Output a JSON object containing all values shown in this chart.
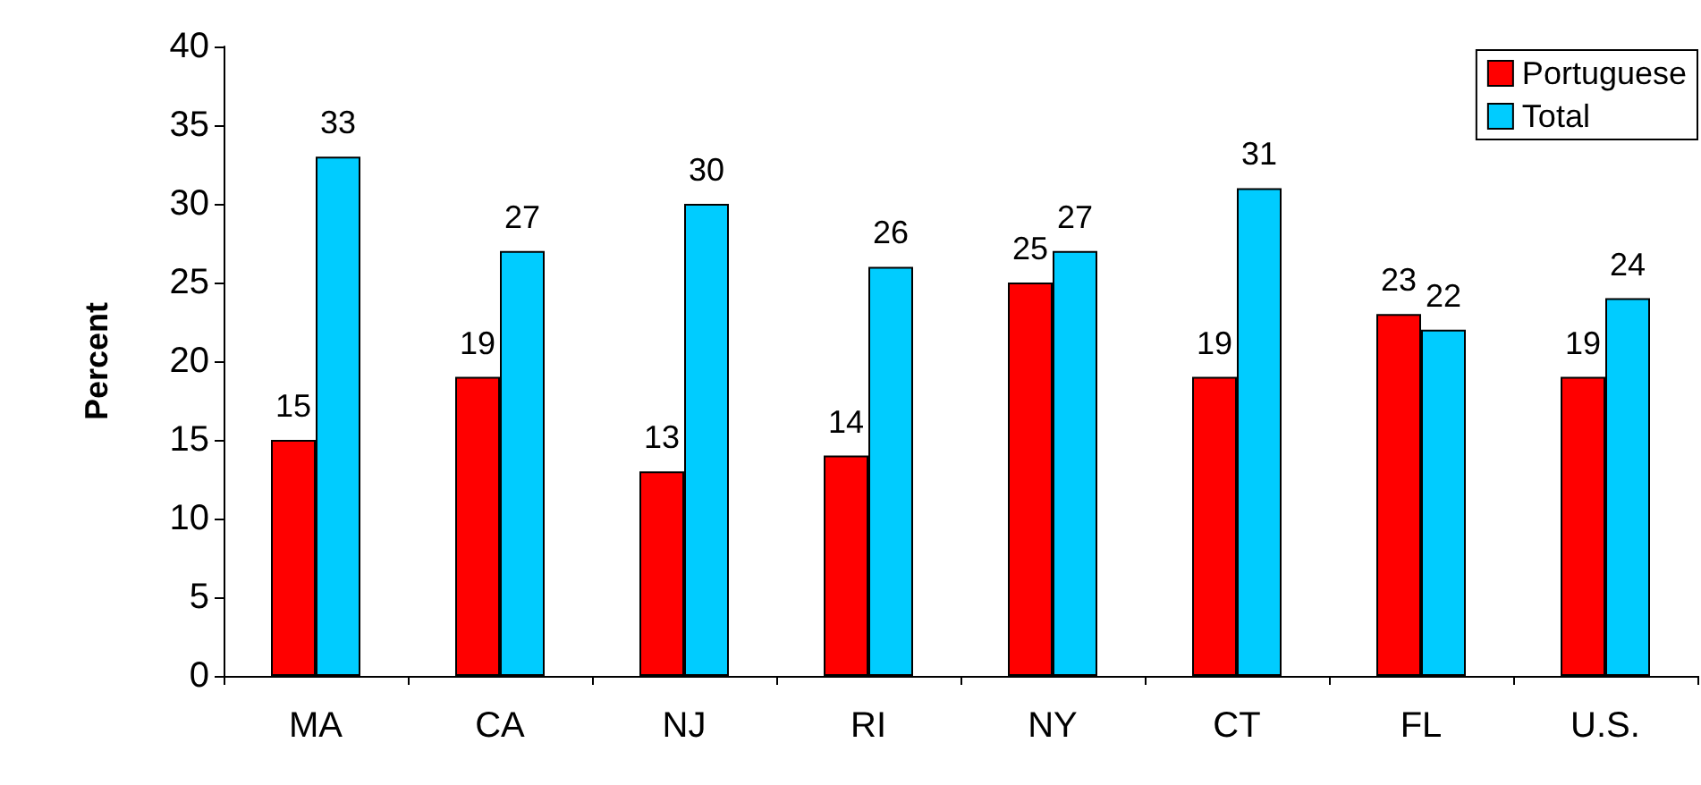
{
  "chart_data": {
    "type": "bar",
    "ylabel": "Percent",
    "categories": [
      "MA",
      "CA",
      "NJ",
      "RI",
      "NY",
      "CT",
      "FL",
      "U.S."
    ],
    "series": [
      {
        "name": "Portuguese",
        "color": "#ff0000",
        "values": [
          15,
          19,
          13,
          14,
          25,
          19,
          23,
          19
        ]
      },
      {
        "name": "Total",
        "color": "#00ccff",
        "values": [
          33,
          27,
          30,
          26,
          27,
          31,
          22,
          24
        ]
      }
    ],
    "ylim": [
      0,
      40
    ],
    "yticks": [
      0,
      5,
      10,
      15,
      20,
      25,
      30,
      35,
      40
    ],
    "grid": false,
    "legend": "top right",
    "data_labels": true
  }
}
